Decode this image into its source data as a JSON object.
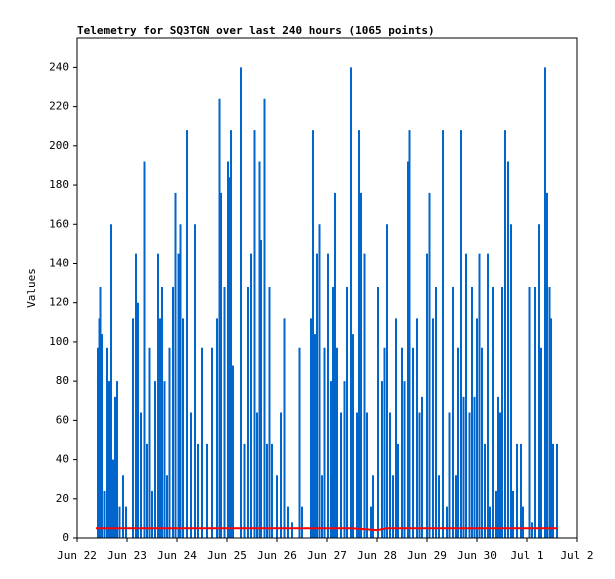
{
  "chart_data": {
    "type": "line",
    "title": "Telemetry for SQ3TGN over last 240 hours (1065 points)",
    "y_label": "Values",
    "xlim": [
      0,
      10
    ],
    "xticks": [
      {
        "value": 0,
        "label": "Jun 22"
      },
      {
        "value": 1,
        "label": "Jun 23"
      },
      {
        "value": 2,
        "label": "Jun 24"
      },
      {
        "value": 3,
        "label": "Jun 25"
      },
      {
        "value": 4,
        "label": "Jun 26"
      },
      {
        "value": 5,
        "label": "Jun 27"
      },
      {
        "value": 6,
        "label": "Jun 28"
      },
      {
        "value": 7,
        "label": "Jun 29"
      },
      {
        "value": 8,
        "label": "Jun 30"
      },
      {
        "value": 9,
        "label": "Jul 1"
      },
      {
        "value": 10,
        "label": "Jul 2"
      }
    ],
    "ylim": [
      0,
      255
    ],
    "yticks": [
      0,
      20,
      40,
      60,
      80,
      100,
      120,
      140,
      160,
      180,
      200,
      220,
      240
    ],
    "grid": false,
    "series": [
      {
        "color": "#0066cc",
        "style": "impulses",
        "x": [
          0.42,
          0.45,
          0.47,
          0.5,
          0.55,
          0.6,
          0.64,
          0.68,
          0.72,
          0.76,
          0.8,
          0.85,
          0.92,
          0.98,
          1.12,
          1.18,
          1.22,
          1.28,
          1.35,
          1.4,
          1.45,
          1.5,
          1.56,
          1.62,
          1.66,
          1.7,
          1.75,
          1.8,
          1.85,
          1.92,
          1.97,
          2.03,
          2.07,
          2.12,
          2.2,
          2.28,
          2.36,
          2.42,
          2.5,
          2.6,
          2.7,
          2.8,
          2.85,
          2.88,
          2.95,
          3.02,
          3.05,
          3.08,
          3.12,
          3.28,
          3.35,
          3.42,
          3.48,
          3.55,
          3.6,
          3.65,
          3.68,
          3.75,
          3.8,
          3.85,
          3.9,
          4.0,
          4.08,
          4.15,
          4.22,
          4.3,
          4.45,
          4.5,
          4.68,
          4.72,
          4.76,
          4.8,
          4.85,
          4.9,
          4.95,
          5.02,
          5.08,
          5.12,
          5.16,
          5.2,
          5.28,
          5.35,
          5.4,
          5.48,
          5.52,
          5.6,
          5.64,
          5.68,
          5.75,
          5.8,
          5.88,
          5.92,
          6.02,
          6.1,
          6.15,
          6.2,
          6.26,
          6.32,
          6.38,
          6.42,
          6.5,
          6.55,
          6.62,
          6.65,
          6.72,
          6.8,
          6.85,
          6.9,
          7.0,
          7.05,
          7.12,
          7.18,
          7.24,
          7.32,
          7.4,
          7.45,
          7.52,
          7.58,
          7.62,
          7.68,
          7.73,
          7.78,
          7.85,
          7.9,
          7.95,
          8.0,
          8.05,
          8.1,
          8.16,
          8.22,
          8.26,
          8.32,
          8.38,
          8.42,
          8.46,
          8.5,
          8.56,
          8.62,
          8.68,
          8.72,
          8.8,
          8.88,
          8.92,
          9.05,
          9.1,
          9.16,
          9.24,
          9.28,
          9.36,
          9.4,
          9.45,
          9.48,
          9.52,
          9.6
        ],
        "values": [
          97,
          112,
          128,
          104,
          24,
          97,
          80,
          160,
          40,
          72,
          80,
          16,
          32,
          16,
          112,
          145,
          120,
          64,
          192,
          48,
          97,
          24,
          80,
          145,
          112,
          128,
          80,
          32,
          97,
          128,
          176,
          145,
          160,
          112,
          208,
          64,
          160,
          48,
          97,
          48,
          97,
          112,
          224,
          176,
          128,
          192,
          184,
          208,
          88,
          240,
          48,
          128,
          145,
          208,
          64,
          192,
          152,
          224,
          48,
          128,
          48,
          32,
          64,
          112,
          16,
          8,
          97,
          16,
          112,
          208,
          104,
          145,
          160,
          32,
          97,
          145,
          80,
          128,
          176,
          97,
          64,
          80,
          128,
          240,
          104,
          64,
          208,
          176,
          145,
          64,
          16,
          32,
          128,
          80,
          97,
          160,
          64,
          32,
          112,
          48,
          97,
          80,
          192,
          208,
          97,
          112,
          64,
          72,
          145,
          176,
          112,
          128,
          32,
          208,
          16,
          64,
          128,
          32,
          97,
          208,
          72,
          145,
          64,
          128,
          72,
          112,
          145,
          97,
          48,
          145,
          16,
          128,
          24,
          72,
          64,
          128,
          208,
          192,
          160,
          24,
          48,
          48,
          16,
          128,
          8,
          128,
          160,
          97,
          240,
          176,
          128,
          112,
          48,
          48
        ]
      },
      {
        "color": "#ff0000",
        "style": "line",
        "x": [
          0.38,
          1.5,
          2.5,
          3.5,
          4.5,
          5.5,
          6.0,
          6.2,
          7.0,
          8.0,
          9.0,
          9.62
        ],
        "values": [
          5,
          5,
          5,
          5,
          5,
          5,
          4,
          5,
          5,
          5,
          5,
          5
        ]
      }
    ]
  }
}
